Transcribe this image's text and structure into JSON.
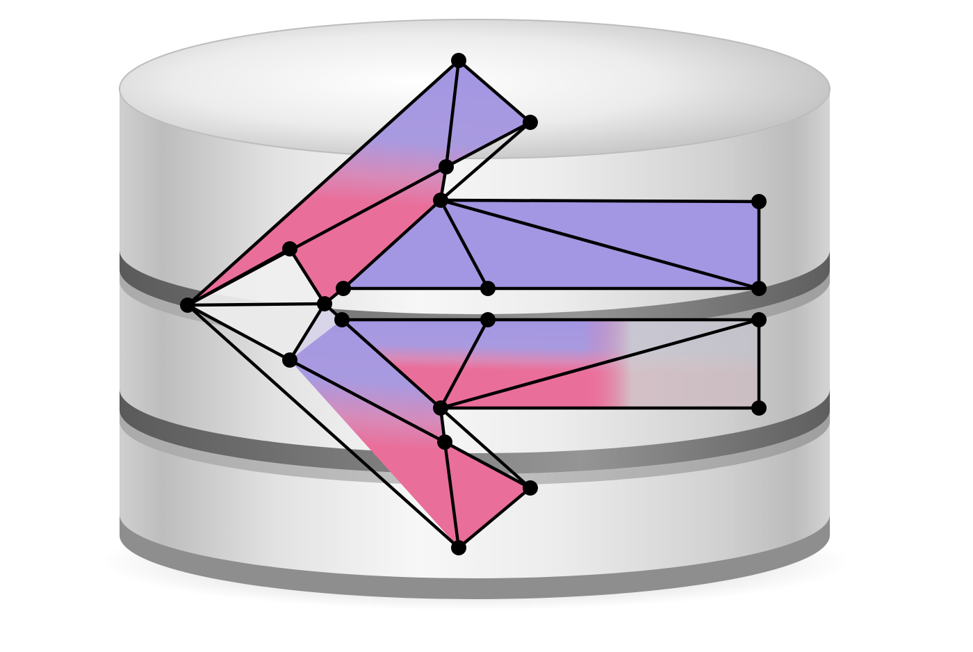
{
  "icon": {
    "name": "database-graph-icon",
    "colors": {
      "cylinder_light": "#f4f4f4",
      "cylinder_mid": "#d6d6d6",
      "cylinder_dark": "#a9a9a9",
      "groove_dark": "#6f6f6f",
      "graph_purple": "#a396e2",
      "graph_pink": "#ea6e9a",
      "graph_white": "#f2f2f2",
      "edge_color": "#000000",
      "node_color": "#000000"
    }
  }
}
